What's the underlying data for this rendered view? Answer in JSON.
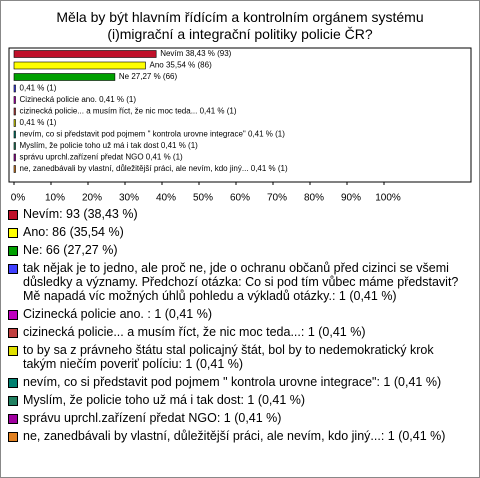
{
  "chart_data": {
    "type": "bar",
    "title": "Měla by být hlavním řídícím a kontrolním orgánem systému (i)migrační a integrační politiky policie ČR?",
    "categories": [
      "Nevím: 93 (38,43 %)",
      "Ano: 86 (35,54 %)",
      "Ne: 66 (27,27 %)",
      "tak nějak je to jedno, ale proč ne, jde o ochranu občanů před cizinci se všemi důsledky a významy. Předchozí otázka: Co si pod tím vůbec máme představit? Mě napadá víc možných úhlů pohledu a výkladů otázky.: 1 (0,41 %)",
      "Cizinecká policie ano. : 1 (0,41 %)",
      "cizinecká policie... a musím říct, že nic moc teda...: 1 (0,41 %)",
      "to by sa z právneho štátu stal policajný štát, bol by to nedemokratický krok takým niečím poveriť políciu: 1 (0,41 %)",
      "nevím, co si představit pod pojmem \" kontrola urovne integrace\": 1 (0,41 %)",
      "Myslím, že policie toho už má i tak dost: 1 (0,41 %)",
      "správu uprchl.zařízení předat NGO: 1 (0,41 %)",
      "ne, zanedbávali by vlastní, důležitější práci, ale nevím, kdo jiný...: 1 (0,41 %)"
    ],
    "values": [
      38.43,
      35.54,
      27.27,
      0.41,
      0.41,
      0.41,
      0.41,
      0.41,
      0.41,
      0.41,
      0.41
    ],
    "value_labels": [
      "Nevím 38,43 % (93)",
      "Ano 35,54 % (86)",
      "Ne 27,27 % (66)",
      "0,41 % (1)",
      "Cizinecká policie ano.  0,41 % (1)",
      "cizinecká policie... a musím říct, že nic moc teda... 0,41 % (1)",
      "0,41 % (1)",
      "nevím, co si představit pod pojmem \" kontrola urovne integrace\" 0,41 % (1)",
      "Myslím, že policie toho už má i tak dost 0,41 % (1)",
      "správu uprchl.zařízení předat NGO 0,41 % (1)",
      "ne, zanedbávali by vlastní, důležitější práci, ale nevím, kdo jiný... 0,41 % (1)"
    ],
    "colors": [
      "#c0102a",
      "#ffff00",
      "#00a000",
      "#4040ff",
      "#c000c0",
      "#c04040",
      "#e0e000",
      "#008070",
      "#208060",
      "#a000a0",
      "#e08020"
    ],
    "xlim": [
      0,
      100
    ],
    "xticks": [
      {
        "value": 0,
        "label": "0%"
      },
      {
        "value": 10,
        "label": "10%"
      },
      {
        "value": 20,
        "label": "20%"
      },
      {
        "value": 30,
        "label": "30%"
      },
      {
        "value": 40,
        "label": "40%"
      },
      {
        "value": 50,
        "label": "50%"
      },
      {
        "value": 60,
        "label": "60%"
      },
      {
        "value": 70,
        "label": "70%"
      },
      {
        "value": 80,
        "label": "80%"
      },
      {
        "value": 90,
        "label": "90%"
      },
      {
        "value": 100,
        "label": "100%"
      }
    ]
  }
}
